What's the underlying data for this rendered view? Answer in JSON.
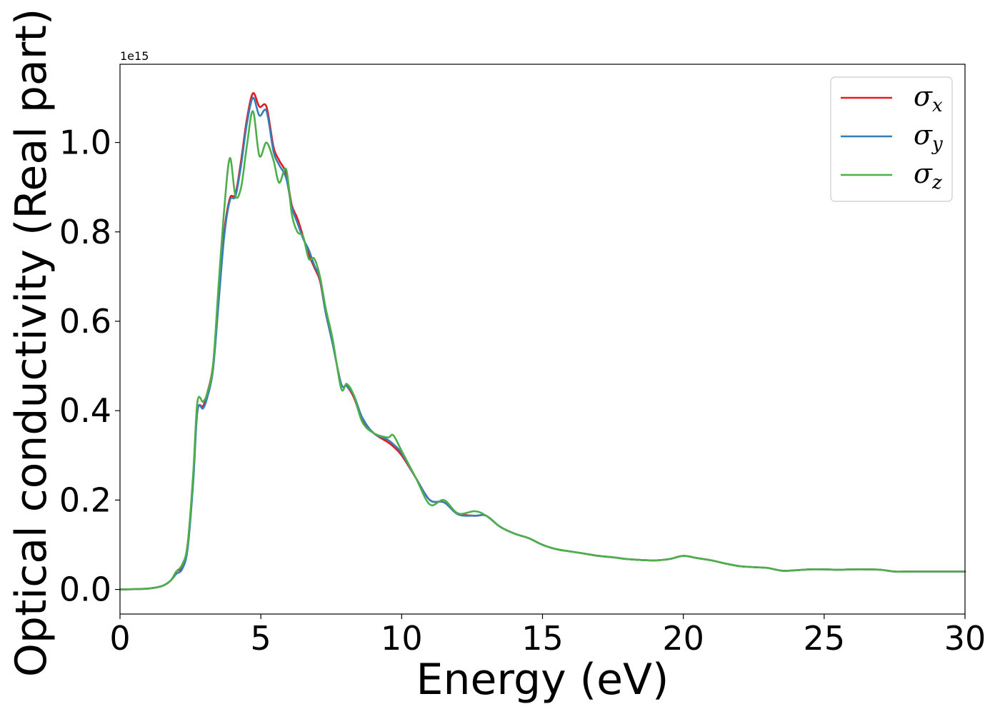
{
  "chart_data": {
    "type": "line",
    "title": "",
    "xlabel": "Energy (eV)",
    "ylabel": "Optical conductivity (Real part)",
    "y_offset_label": "1e15",
    "xlim": [
      0,
      30
    ],
    "ylim": [
      -0.055,
      1.175
    ],
    "x_ticks": [
      0,
      5,
      10,
      15,
      20,
      25,
      30
    ],
    "x_tick_labels": [
      "0",
      "5",
      "10",
      "15",
      "20",
      "25",
      "30"
    ],
    "y_ticks": [
      0.0,
      0.2,
      0.4,
      0.6,
      0.8,
      1.0
    ],
    "y_tick_labels": [
      "0.0",
      "0.2",
      "0.4",
      "0.6",
      "0.8",
      "1.0"
    ],
    "grid": false,
    "legend_position": "top-right",
    "series": [
      {
        "name": "σ_x",
        "legend_main": "σ",
        "legend_sub": "x",
        "color": "#e41a1c",
        "x": [
          0,
          1,
          1.5,
          1.8,
          2.0,
          2.2,
          2.4,
          2.6,
          2.75,
          2.95,
          3.1,
          3.3,
          3.5,
          3.7,
          3.9,
          4.1,
          4.3,
          4.5,
          4.72,
          4.95,
          5.2,
          5.45,
          5.65,
          5.9,
          6.1,
          6.3,
          6.5,
          6.7,
          6.9,
          7.1,
          7.3,
          7.55,
          7.85,
          8.05,
          8.3,
          8.6,
          9.0,
          9.5,
          9.7,
          10.0,
          10.5,
          11.0,
          11.5,
          12.0,
          12.6,
          13.0,
          13.5,
          14.0,
          14.5,
          15.0,
          15.5,
          16.0,
          16.5,
          17.0,
          17.5,
          18.0,
          18.5,
          19.0,
          19.5,
          20.0,
          20.5,
          21.0,
          21.5,
          22.0,
          22.5,
          23.0,
          23.5,
          24.0,
          24.5,
          25.0,
          25.5,
          26.0,
          26.5,
          27.0,
          27.5,
          28.0,
          28.5,
          29.0,
          29.5,
          30.0
        ],
        "y": [
          0.0,
          0.002,
          0.008,
          0.02,
          0.04,
          0.05,
          0.1,
          0.25,
          0.4,
          0.41,
          0.44,
          0.5,
          0.65,
          0.8,
          0.875,
          0.885,
          0.96,
          1.05,
          1.11,
          1.08,
          1.08,
          0.99,
          0.96,
          0.93,
          0.86,
          0.83,
          0.79,
          0.75,
          0.72,
          0.69,
          0.62,
          0.55,
          0.46,
          0.455,
          0.43,
          0.38,
          0.35,
          0.33,
          0.32,
          0.3,
          0.25,
          0.2,
          0.195,
          0.17,
          0.165,
          0.165,
          0.14,
          0.125,
          0.115,
          0.1,
          0.09,
          0.085,
          0.08,
          0.075,
          0.072,
          0.068,
          0.066,
          0.065,
          0.068,
          0.075,
          0.07,
          0.065,
          0.058,
          0.052,
          0.05,
          0.048,
          0.042,
          0.043,
          0.045,
          0.045,
          0.044,
          0.045,
          0.045,
          0.044,
          0.04,
          0.04,
          0.04,
          0.04,
          0.04,
          0.04
        ]
      },
      {
        "name": "σ_y",
        "legend_main": "σ",
        "legend_sub": "y",
        "color": "#377eb8",
        "x": [
          0,
          1,
          1.5,
          1.8,
          2.0,
          2.2,
          2.4,
          2.6,
          2.75,
          2.95,
          3.1,
          3.3,
          3.5,
          3.7,
          3.9,
          4.1,
          4.3,
          4.5,
          4.72,
          4.95,
          5.2,
          5.45,
          5.65,
          5.9,
          6.1,
          6.3,
          6.5,
          6.7,
          6.9,
          7.1,
          7.3,
          7.55,
          7.85,
          8.05,
          8.3,
          8.6,
          9.0,
          9.5,
          9.7,
          10.0,
          10.5,
          11.0,
          11.5,
          12.0,
          12.6,
          13.0,
          13.5,
          14.0,
          14.5,
          15.0,
          15.5,
          16.0,
          16.5,
          17.0,
          17.5,
          18.0,
          18.5,
          19.0,
          19.5,
          20.0,
          20.5,
          21.0,
          21.5,
          22.0,
          22.5,
          23.0,
          23.5,
          24.0,
          24.5,
          25.0,
          25.5,
          26.0,
          26.5,
          27.0,
          27.5,
          28.0,
          28.5,
          29.0,
          29.5,
          30.0
        ],
        "y": [
          0.0,
          0.002,
          0.008,
          0.02,
          0.035,
          0.045,
          0.09,
          0.24,
          0.4,
          0.405,
          0.43,
          0.49,
          0.64,
          0.79,
          0.87,
          0.88,
          0.95,
          1.04,
          1.1,
          1.06,
          1.07,
          0.98,
          0.95,
          0.92,
          0.855,
          0.82,
          0.785,
          0.76,
          0.725,
          0.695,
          0.62,
          0.55,
          0.46,
          0.455,
          0.435,
          0.385,
          0.35,
          0.335,
          0.325,
          0.305,
          0.25,
          0.2,
          0.195,
          0.168,
          0.165,
          0.165,
          0.14,
          0.125,
          0.115,
          0.1,
          0.09,
          0.085,
          0.08,
          0.075,
          0.072,
          0.068,
          0.066,
          0.065,
          0.068,
          0.075,
          0.07,
          0.065,
          0.058,
          0.052,
          0.05,
          0.048,
          0.042,
          0.043,
          0.045,
          0.045,
          0.044,
          0.045,
          0.045,
          0.044,
          0.04,
          0.04,
          0.04,
          0.04,
          0.04,
          0.04
        ]
      },
      {
        "name": "σ_z",
        "legend_main": "σ",
        "legend_sub": "z",
        "color": "#4daf4a",
        "x": [
          0,
          1,
          1.5,
          1.8,
          2.0,
          2.2,
          2.4,
          2.6,
          2.75,
          2.95,
          3.1,
          3.3,
          3.5,
          3.7,
          3.9,
          4.1,
          4.3,
          4.5,
          4.72,
          4.95,
          5.2,
          5.45,
          5.65,
          5.9,
          6.1,
          6.3,
          6.5,
          6.7,
          6.9,
          7.1,
          7.3,
          7.55,
          7.85,
          8.05,
          8.3,
          8.6,
          9.0,
          9.5,
          9.7,
          10.0,
          10.5,
          11.0,
          11.5,
          12.0,
          12.6,
          13.0,
          13.5,
          14.0,
          14.5,
          15.0,
          15.5,
          16.0,
          16.5,
          17.0,
          17.5,
          18.0,
          18.5,
          19.0,
          19.5,
          20.0,
          20.5,
          21.0,
          21.5,
          22.0,
          22.5,
          23.0,
          23.5,
          24.0,
          24.5,
          25.0,
          25.5,
          26.0,
          26.5,
          27.0,
          27.5,
          28.0,
          28.5,
          29.0,
          29.5,
          30.0
        ],
        "y": [
          0.0,
          0.002,
          0.008,
          0.02,
          0.04,
          0.055,
          0.1,
          0.26,
          0.42,
          0.42,
          0.44,
          0.5,
          0.68,
          0.85,
          0.965,
          0.88,
          0.9,
          0.99,
          1.07,
          0.97,
          1.0,
          0.96,
          0.91,
          0.94,
          0.84,
          0.8,
          0.79,
          0.74,
          0.74,
          0.7,
          0.63,
          0.56,
          0.45,
          0.46,
          0.435,
          0.375,
          0.35,
          0.34,
          0.345,
          0.31,
          0.25,
          0.19,
          0.2,
          0.17,
          0.175,
          0.165,
          0.14,
          0.125,
          0.115,
          0.1,
          0.09,
          0.085,
          0.08,
          0.075,
          0.072,
          0.068,
          0.066,
          0.065,
          0.068,
          0.075,
          0.07,
          0.065,
          0.058,
          0.052,
          0.05,
          0.048,
          0.042,
          0.043,
          0.045,
          0.045,
          0.044,
          0.045,
          0.045,
          0.044,
          0.04,
          0.04,
          0.04,
          0.04,
          0.04,
          0.04
        ]
      }
    ]
  }
}
